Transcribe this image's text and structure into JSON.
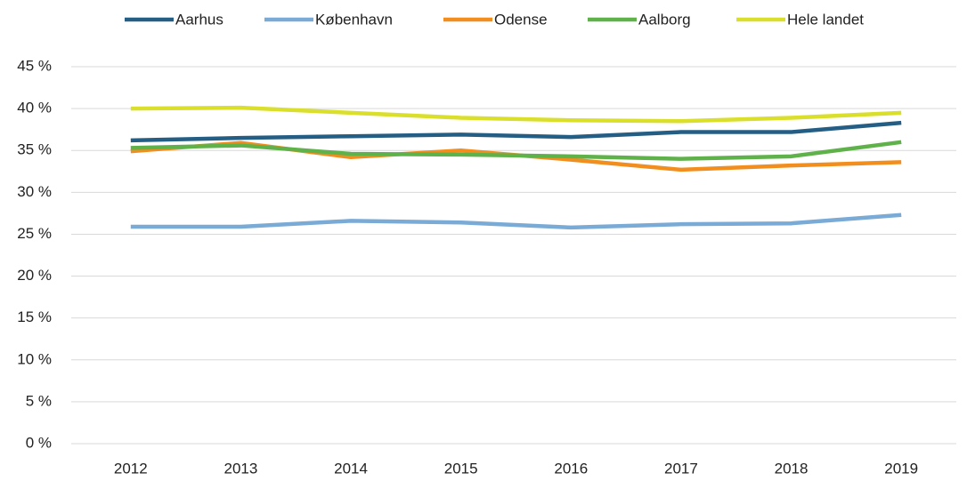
{
  "chart_data": {
    "type": "line",
    "categories": [
      "2012",
      "2013",
      "2014",
      "2015",
      "2016",
      "2017",
      "2018",
      "2019"
    ],
    "series": [
      {
        "name": "Aarhus",
        "color": "#255e85",
        "values": [
          36.2,
          36.5,
          36.7,
          36.9,
          36.6,
          37.2,
          37.2,
          38.3
        ]
      },
      {
        "name": "København",
        "color": "#7aaad6",
        "values": [
          25.9,
          25.9,
          26.6,
          26.4,
          25.8,
          26.2,
          26.3,
          27.3
        ]
      },
      {
        "name": "Odense",
        "color": "#f28e1e",
        "values": [
          34.9,
          35.9,
          34.2,
          35.0,
          33.9,
          32.7,
          33.2,
          33.6
        ]
      },
      {
        "name": "Aalborg",
        "color": "#5fb14a",
        "values": [
          35.3,
          35.6,
          34.6,
          34.5,
          34.3,
          34.0,
          34.3,
          36.0
        ]
      },
      {
        "name": "Hele landet",
        "color": "#d9df2a",
        "values": [
          40.0,
          40.1,
          39.5,
          38.9,
          38.6,
          38.5,
          38.9,
          39.5
        ]
      }
    ],
    "ylim": [
      0,
      45
    ],
    "yticks": [
      {
        "value": 0,
        "label": "0 %"
      },
      {
        "value": 5,
        "label": "5 %"
      },
      {
        "value": 10,
        "label": "10 %"
      },
      {
        "value": 15,
        "label": "15 %"
      },
      {
        "value": 20,
        "label": "20 %"
      },
      {
        "value": 25,
        "label": "25 %"
      },
      {
        "value": 30,
        "label": "30 %"
      },
      {
        "value": 35,
        "label": "35 %"
      },
      {
        "value": 40,
        "label": "40 %"
      },
      {
        "value": 45,
        "label": "45 %"
      }
    ],
    "grid": true,
    "legend": "top"
  }
}
